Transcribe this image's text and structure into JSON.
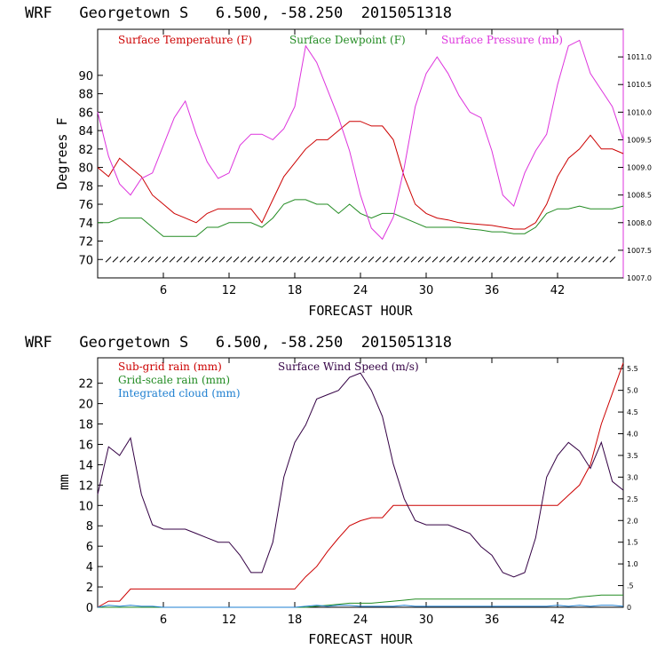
{
  "panels": [
    {
      "title": "WRF   Georgetown S   6.500, -58.250  2015051318",
      "xlabel": "FORECAST HOUR",
      "ylabel": "Degrees F",
      "legend": [
        {
          "label": "Surface Temperature (F)",
          "color": "#cc0000"
        },
        {
          "label": "Surface Dewpoint (F)",
          "color": "#228b22"
        },
        {
          "label": "Surface Pressure (mb)",
          "color": "#dd33dd"
        }
      ]
    },
    {
      "title": "WRF   Georgetown S   6.500, -58.250  2015051318",
      "xlabel": "FORECAST HOUR",
      "ylabel": "mm",
      "legend": [
        {
          "label": "Sub-grid rain (mm)",
          "color": "#cc0000"
        },
        {
          "label": "Surface Wind Speed (m/s)",
          "color": "#330044"
        },
        {
          "label": "Grid-scale rain (mm)",
          "color": "#228b22"
        },
        {
          "label": "Integrated cloud (mm)",
          "color": "#1e7fd0"
        }
      ]
    }
  ],
  "chart_data": [
    {
      "type": "line",
      "title": "WRF   Georgetown S   6.500, -58.250  2015051318",
      "xlabel": "FORECAST HOUR",
      "ylabel": "Degrees F",
      "xlim": [
        0,
        48
      ],
      "ylim": [
        68,
        95
      ],
      "xticks": [
        "6",
        "12",
        "18",
        "24",
        "30",
        "36",
        "42"
      ],
      "yticks": [
        "70",
        "72",
        "74",
        "76",
        "78",
        "80",
        "82",
        "84",
        "86",
        "88",
        "90"
      ],
      "y2lim": [
        1007.0,
        1011.5
      ],
      "y2ticks": [
        "1007.0",
        "1007.5",
        "1008.0",
        "1008.5",
        "1009.0",
        "1009.5",
        "1010.0",
        "1010.5",
        "1011.0"
      ],
      "grid": false,
      "legend_position": "top",
      "x": [
        0,
        1,
        2,
        3,
        4,
        5,
        6,
        7,
        8,
        9,
        10,
        11,
        12,
        13,
        14,
        15,
        16,
        17,
        18,
        19,
        20,
        21,
        22,
        23,
        24,
        25,
        26,
        27,
        28,
        29,
        30,
        31,
        32,
        33,
        34,
        35,
        36,
        37,
        38,
        39,
        40,
        41,
        42,
        43,
        44,
        45,
        46,
        47,
        48
      ],
      "series": [
        {
          "name": "Surface Temperature (F)",
          "color": "#cc0000",
          "axis": "left",
          "values": [
            80,
            79,
            81,
            80,
            79,
            77,
            76,
            75,
            74.5,
            74,
            75,
            75.5,
            75.5,
            75.5,
            75.5,
            74,
            76.5,
            79,
            80.5,
            82,
            83,
            83,
            84,
            85,
            85,
            84.5,
            84.5,
            83,
            79,
            76,
            75,
            74.5,
            74.3,
            74,
            73.9,
            73.8,
            73.7,
            73.5,
            73.3,
            73.3,
            74,
            76,
            79,
            81,
            82,
            83.5,
            82,
            82,
            81.5
          ]
        },
        {
          "name": "Surface Dewpoint (F)",
          "color": "#228b22",
          "axis": "left",
          "values": [
            74,
            74,
            74.5,
            74.5,
            74.5,
            73.5,
            72.5,
            72.5,
            72.5,
            72.5,
            73.5,
            73.5,
            74,
            74,
            74,
            73.5,
            74.5,
            76,
            76.5,
            76.5,
            76,
            76,
            75,
            76,
            75,
            74.5,
            75,
            75,
            74.5,
            74,
            73.5,
            73.5,
            73.5,
            73.5,
            73.3,
            73.2,
            73,
            73,
            72.8,
            72.8,
            73.5,
            75,
            75.5,
            75.5,
            75.8,
            75.5,
            75.5,
            75.5,
            75.8
          ]
        },
        {
          "name": "Surface Pressure (mb)",
          "color": "#dd33dd",
          "axis": "right",
          "values": [
            1010.0,
            1009.2,
            1008.7,
            1008.5,
            1008.8,
            1008.9,
            1009.4,
            1009.9,
            1010.2,
            1009.6,
            1009.1,
            1008.8,
            1008.9,
            1009.4,
            1009.6,
            1009.6,
            1009.5,
            1009.7,
            1010.1,
            1011.2,
            1010.9,
            1010.4,
            1009.9,
            1009.3,
            1008.5,
            1007.9,
            1007.7,
            1008.1,
            1009.0,
            1010.1,
            1010.7,
            1011.0,
            1010.7,
            1010.3,
            1010.0,
            1009.9,
            1009.3,
            1008.5,
            1008.3,
            1008.9,
            1009.3,
            1009.6,
            1010.5,
            1011.2,
            1011.3,
            1010.7,
            1010.4,
            1010.1,
            1009.5
          ]
        }
      ]
    },
    {
      "type": "line",
      "title": "WRF   Georgetown S   6.500, -58.250  2015051318",
      "xlabel": "FORECAST HOUR",
      "ylabel": "mm",
      "xlim": [
        0,
        48
      ],
      "ylim": [
        0,
        24.5
      ],
      "xticks": [
        "6",
        "12",
        "18",
        "24",
        "30",
        "36",
        "42"
      ],
      "yticks": [
        "0",
        "2",
        "4",
        "6",
        "8",
        "10",
        "12",
        "14",
        "16",
        "18",
        "20",
        "22"
      ],
      "y2lim": [
        0,
        5.75
      ],
      "y2ticks": [
        "0",
        ".5",
        "1.0",
        "1.5",
        "2.0",
        "2.5",
        "3.0",
        "3.5",
        "4.0",
        "4.5",
        "5.0",
        "5.5"
      ],
      "grid": false,
      "legend_position": "top",
      "x": [
        0,
        1,
        2,
        3,
        4,
        5,
        6,
        7,
        8,
        9,
        10,
        11,
        12,
        13,
        14,
        15,
        16,
        17,
        18,
        19,
        20,
        21,
        22,
        23,
        24,
        25,
        26,
        27,
        28,
        29,
        30,
        31,
        32,
        33,
        34,
        35,
        36,
        37,
        38,
        39,
        40,
        41,
        42,
        43,
        44,
        45,
        46,
        47,
        48
      ],
      "series": [
        {
          "name": "Sub-grid rain (mm)",
          "color": "#cc0000",
          "axis": "left",
          "values": [
            0,
            0.6,
            0.6,
            1.8,
            1.8,
            1.8,
            1.8,
            1.8,
            1.8,
            1.8,
            1.8,
            1.8,
            1.8,
            1.8,
            1.8,
            1.8,
            1.8,
            1.8,
            1.8,
            3,
            4,
            5.5,
            6.8,
            8,
            8.5,
            8.8,
            8.8,
            10,
            10,
            10,
            10,
            10,
            10,
            10,
            10,
            10,
            10,
            10,
            10,
            10,
            10,
            10,
            10,
            11,
            12,
            14,
            18,
            21,
            24
          ]
        },
        {
          "name": "Grid-scale rain (mm)",
          "color": "#228b22",
          "axis": "left",
          "values": [
            0,
            0,
            0,
            0,
            0,
            0,
            0,
            0,
            0,
            0,
            0,
            0,
            0,
            0,
            0,
            0,
            0,
            0,
            0,
            0,
            0.1,
            0.2,
            0.3,
            0.4,
            0.4,
            0.4,
            0.5,
            0.6,
            0.7,
            0.8,
            0.8,
            0.8,
            0.8,
            0.8,
            0.8,
            0.8,
            0.8,
            0.8,
            0.8,
            0.8,
            0.8,
            0.8,
            0.8,
            0.8,
            1.0,
            1.1,
            1.2,
            1.2,
            1.2
          ]
        },
        {
          "name": "Integrated cloud (mm)",
          "color": "#1e7fd0",
          "axis": "left",
          "values": [
            0,
            0.2,
            0.1,
            0.2,
            0.1,
            0.1,
            0,
            0,
            0,
            0,
            0,
            0,
            0,
            0,
            0,
            0,
            0,
            0,
            0,
            0.1,
            0.2,
            0.1,
            0.2,
            0.2,
            0.1,
            0.1,
            0.1,
            0.1,
            0.2,
            0.1,
            0.1,
            0.1,
            0.1,
            0.1,
            0.1,
            0.1,
            0.1,
            0.1,
            0.1,
            0.1,
            0.1,
            0.1,
            0.2,
            0.1,
            0.2,
            0.1,
            0.2,
            0.2,
            0.1
          ]
        },
        {
          "name": "Surface Wind Speed (m/s)",
          "color": "#330044",
          "axis": "right",
          "values": [
            2.6,
            3.7,
            3.5,
            3.9,
            2.6,
            1.9,
            1.8,
            1.8,
            1.8,
            1.7,
            1.6,
            1.5,
            1.5,
            1.2,
            0.8,
            0.8,
            1.5,
            3.0,
            3.8,
            4.2,
            4.8,
            4.9,
            5.0,
            5.3,
            5.4,
            5.0,
            4.4,
            3.3,
            2.5,
            2.0,
            1.9,
            1.9,
            1.9,
            1.8,
            1.7,
            1.4,
            1.2,
            0.8,
            0.7,
            0.8,
            1.6,
            3.0,
            3.5,
            3.8,
            3.6,
            3.2,
            3.8,
            2.9,
            2.7
          ]
        }
      ]
    }
  ]
}
